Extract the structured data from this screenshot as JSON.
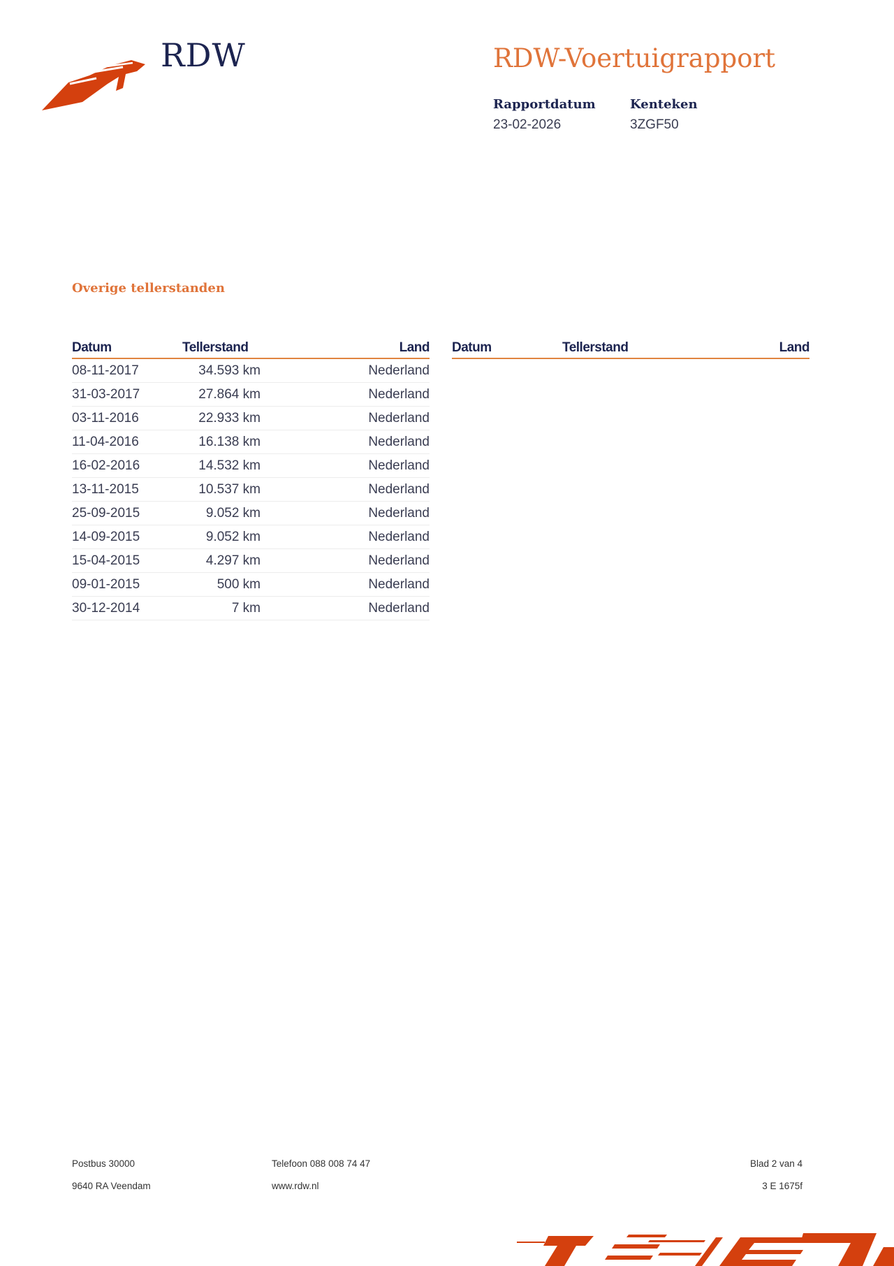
{
  "header": {
    "brand": "RDW",
    "title": "RDW-Voertuigrapport",
    "meta": [
      {
        "label": "Rapportdatum",
        "value": "23-02-2026"
      },
      {
        "label": "Kenteken",
        "value": "3ZGF50"
      }
    ]
  },
  "section": {
    "title": "Overige tellerstanden",
    "columns": [
      "Datum",
      "Tellerstand",
      "Land"
    ],
    "rows": [
      [
        "08-11-2017",
        "34.593 km",
        "Nederland"
      ],
      [
        "31-03-2017",
        "27.864 km",
        "Nederland"
      ],
      [
        "03-11-2016",
        "22.933 km",
        "Nederland"
      ],
      [
        "11-04-2016",
        "16.138 km",
        "Nederland"
      ],
      [
        "16-02-2016",
        "14.532 km",
        "Nederland"
      ],
      [
        "13-11-2015",
        "10.537 km",
        "Nederland"
      ],
      [
        "25-09-2015",
        "9.052 km",
        "Nederland"
      ],
      [
        "14-09-2015",
        "9.052 km",
        "Nederland"
      ],
      [
        "15-04-2015",
        "4.297 km",
        "Nederland"
      ],
      [
        "09-01-2015",
        "500 km",
        "Nederland"
      ],
      [
        "30-12-2014",
        "7 km",
        "Nederland"
      ]
    ]
  },
  "footer": {
    "address1": "Postbus 30000",
    "address2": "9640 RA Veendam",
    "phone": "Telefoon 088 008 74 47",
    "website": "www.rdw.nl",
    "page": "Blad 2 van 4",
    "code": "3 E 1675f"
  },
  "colors": {
    "accent": "#e0743a",
    "navy": "#1c2450",
    "logo": "#d4400e"
  }
}
